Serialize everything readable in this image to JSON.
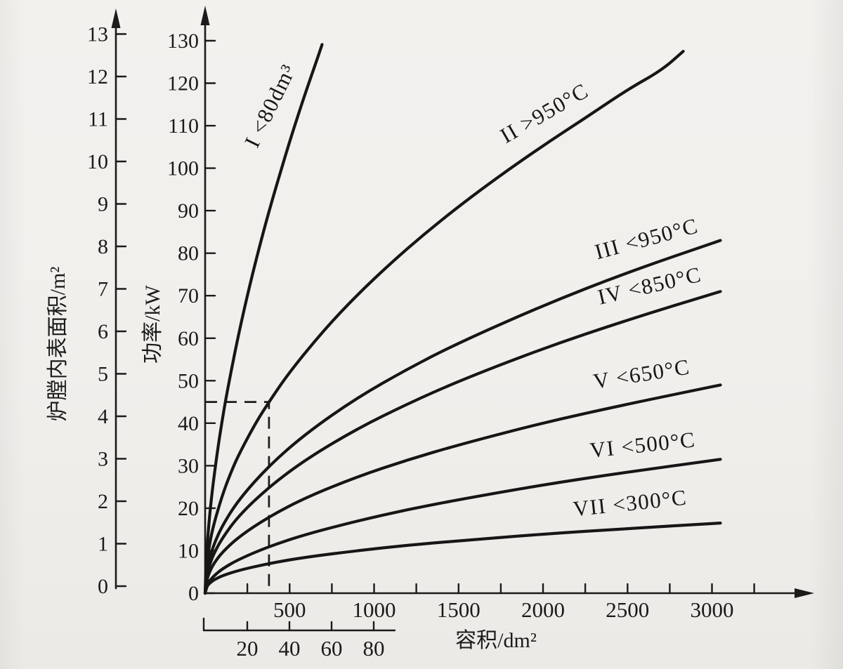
{
  "page": {
    "background": "#f1efec",
    "ink": "#1b1b1b"
  },
  "chart_data": {
    "type": "line",
    "title": "",
    "xlabel": "容积/dm²",
    "power_axis_label": "功率/kW",
    "area_axis_label": "炉膛内表面积/m²",
    "x_axis": {
      "min": 0,
      "max": 3300,
      "major_ticks": [
        500,
        1000,
        1500,
        2000,
        2500,
        3000
      ],
      "minor_tick_step": 250
    },
    "power_axis": {
      "min": 0,
      "max": 130,
      "tick_step": 10,
      "ticks": [
        0,
        10,
        20,
        30,
        40,
        50,
        60,
        70,
        80,
        90,
        100,
        110,
        120,
        130
      ]
    },
    "area_axis": {
      "min": 0,
      "max": 13,
      "tick_step": 1,
      "ticks": [
        0,
        1,
        2,
        3,
        4,
        5,
        6,
        7,
        8,
        9,
        10,
        11,
        12,
        13
      ]
    },
    "secondary_x_axis": {
      "min": 0,
      "max": 90,
      "ticks": [
        20,
        40,
        60,
        80
      ]
    },
    "guide_lines": {
      "volume": 378,
      "power": 45,
      "style": "dashed"
    },
    "series": [
      {
        "id": "I",
        "label": "I <80dm³",
        "x_scale": "secondary",
        "points": [
          [
            0,
            0
          ],
          [
            0.5,
            7.6
          ],
          [
            1,
            11.6
          ],
          [
            2,
            17.6
          ],
          [
            3,
            22.4
          ],
          [
            4,
            26.6
          ],
          [
            6,
            34.0
          ],
          [
            8,
            40.4
          ],
          [
            10,
            46.2
          ],
          [
            13,
            53.9
          ],
          [
            16,
            61.2
          ],
          [
            20,
            70.0
          ],
          [
            24,
            78.1
          ],
          [
            28,
            85.7
          ],
          [
            32,
            92.8
          ],
          [
            36,
            99.5
          ],
          [
            40,
            106.1
          ],
          [
            44,
            112.3
          ],
          [
            48,
            118.3
          ],
          [
            52,
            124.0
          ],
          [
            55.5,
            129.1
          ]
        ]
      },
      {
        "id": "II",
        "label": "II >950°C",
        "x_scale": "main",
        "points": [
          [
            0,
            0
          ],
          [
            10,
            7.1
          ],
          [
            25,
            11.3
          ],
          [
            50,
            16.1
          ],
          [
            100,
            22.9
          ],
          [
            150,
            28.2
          ],
          [
            200,
            32.7
          ],
          [
            300,
            40.1
          ],
          [
            378,
            45.0
          ],
          [
            500,
            52.1
          ],
          [
            700,
            61.8
          ],
          [
            900,
            70.2
          ],
          [
            1100,
            77.7
          ],
          [
            1300,
            84.6
          ],
          [
            1500,
            91.0
          ],
          [
            1750,
            98.4
          ],
          [
            2000,
            105.3
          ],
          [
            2250,
            111.8
          ],
          [
            2500,
            118.5
          ],
          [
            2700,
            123.0
          ],
          [
            2830,
            127.5
          ]
        ]
      },
      {
        "id": "III",
        "label": "III <950°C",
        "x_scale": "main",
        "points": [
          [
            0,
            0
          ],
          [
            10,
            5.2
          ],
          [
            25,
            8.0
          ],
          [
            50,
            11.3
          ],
          [
            100,
            15.8
          ],
          [
            200,
            22.1
          ],
          [
            378,
            30.0
          ],
          [
            600,
            37.7
          ],
          [
            900,
            46.0
          ],
          [
            1200,
            52.8
          ],
          [
            1500,
            58.9
          ],
          [
            2000,
            67.7
          ],
          [
            2500,
            75.5
          ],
          [
            3050,
            83.0
          ]
        ]
      },
      {
        "id": "IV",
        "label": "IV <850°C",
        "x_scale": "main",
        "points": [
          [
            0,
            0
          ],
          [
            10,
            4.1
          ],
          [
            25,
            6.5
          ],
          [
            50,
            9.2
          ],
          [
            100,
            12.9
          ],
          [
            200,
            18.3
          ],
          [
            378,
            25.0
          ],
          [
            600,
            31.6
          ],
          [
            900,
            38.7
          ],
          [
            1200,
            44.6
          ],
          [
            1500,
            49.9
          ],
          [
            2000,
            57.6
          ],
          [
            2500,
            64.3
          ],
          [
            3050,
            71.0
          ]
        ]
      },
      {
        "id": "V",
        "label": "V <650°C",
        "x_scale": "main",
        "points": [
          [
            0,
            0
          ],
          [
            10,
            3.2
          ],
          [
            25,
            4.9
          ],
          [
            50,
            6.9
          ],
          [
            100,
            9.6
          ],
          [
            200,
            13.3
          ],
          [
            378,
            18.0
          ],
          [
            600,
            22.6
          ],
          [
            900,
            27.4
          ],
          [
            1200,
            31.4
          ],
          [
            1500,
            34.9
          ],
          [
            2000,
            40.1
          ],
          [
            2500,
            44.5
          ],
          [
            3050,
            49.0
          ]
        ]
      },
      {
        "id": "VI",
        "label": "VI <500°C",
        "x_scale": "main",
        "points": [
          [
            0,
            0
          ],
          [
            10,
            1.8
          ],
          [
            25,
            2.8
          ],
          [
            50,
            4.0
          ],
          [
            100,
            5.7
          ],
          [
            200,
            8.0
          ],
          [
            378,
            11.0
          ],
          [
            600,
            13.9
          ],
          [
            900,
            17.0
          ],
          [
            1200,
            19.7
          ],
          [
            1500,
            22.0
          ],
          [
            2000,
            25.5
          ],
          [
            2500,
            28.5
          ],
          [
            3050,
            31.5
          ]
        ]
      },
      {
        "id": "VII",
        "label": "VII <300°C",
        "x_scale": "main",
        "points": [
          [
            0,
            0
          ],
          [
            10,
            1.6
          ],
          [
            25,
            2.3
          ],
          [
            50,
            3.1
          ],
          [
            100,
            4.1
          ],
          [
            200,
            5.4
          ],
          [
            378,
            7.0
          ],
          [
            600,
            8.5
          ],
          [
            900,
            10.0
          ],
          [
            1200,
            11.3
          ],
          [
            1500,
            12.3
          ],
          [
            2000,
            13.9
          ],
          [
            2500,
            15.2
          ],
          [
            3050,
            16.5
          ]
        ]
      }
    ]
  }
}
